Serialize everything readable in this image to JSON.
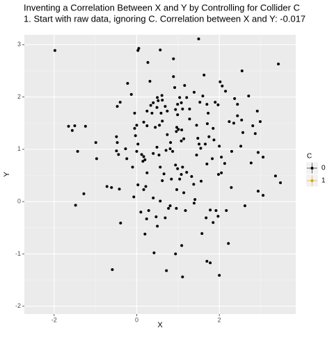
{
  "chart_data": {
    "type": "scatter",
    "title": "Inventing a Correlation Between X and Y by Controlling for Collider C",
    "subtitle": "1. Start with raw data, ignoring C. Correlation between X and Y: -0.017",
    "x_label": "X",
    "y_label": "Y",
    "legend_title": "C",
    "xlim": [
      -2.72,
      3.85
    ],
    "ylim": [
      -2.15,
      3.19
    ],
    "xticks": [
      -2,
      0,
      2
    ],
    "yticks": [
      -2,
      -1,
      0,
      1,
      2,
      3
    ],
    "grid": true,
    "series": [
      {
        "name": "0",
        "color": "#000000",
        "x": [
          -1.98,
          1.5,
          0.03,
          0.05,
          0.57,
          0.27,
          0.89,
          3.43,
          2.55,
          -0.22,
          -0.13,
          0.32,
          0.89,
          1.63,
          2.02,
          2.07,
          1.16,
          0.61,
          0.5,
          0.4,
          0.52,
          0.62,
          0.34,
          0.49,
          0.69,
          0.74,
          0.59,
          0.37,
          0.25,
          -0.4,
          -0.47,
          -0.05,
          0.92,
          1.04,
          0.99,
          1.08,
          0.94,
          1.11,
          0.99,
          1.21,
          1.39,
          1.28,
          1.53,
          1.6,
          1.7,
          1.73,
          1.9,
          1.97,
          2.15,
          2.37,
          2.44,
          2.71,
          2.92,
          2.81,
          2.24,
          2.35,
          2.44,
          2.54,
          1.71,
          1.85,
          1.45,
          1.28,
          1.48,
          1.75,
          1.87,
          0.55,
          0.62,
          0.45,
          0.25,
          0.17,
          0.0,
          -0.05,
          0.97,
          1.01,
          0.96,
          1.09,
          1.14,
          0.82,
          0.74,
          0.71,
          0.81,
          0.87,
          1.08,
          -1.65,
          -1.5,
          -1.24,
          -1.56,
          -0.99,
          -0.49,
          -0.47,
          -0.49,
          -0.44,
          -0.03,
          0.03,
          0.0,
          0.12,
          0.17,
          0.15,
          -1.43,
          -0.97,
          -0.27,
          -0.24,
          0.2,
          0.4,
          0.54,
          0.49,
          1.51,
          1.66,
          1.55,
          1.45,
          1.7,
          1.83,
          2.0,
          2.05,
          2.13,
          2.3,
          2.52,
          2.57,
          2.87,
          2.99,
          2.94,
          3.06,
          2.77,
          0.94,
          0.99,
          1.08,
          1.04,
          1.33,
          1.38,
          1.56,
          1.21,
          1.11,
          0.57,
          0.66,
          0.62,
          0.84,
          0.25,
          0.22,
          0.03,
          -0.1,
          -0.61,
          -0.42,
          -0.72,
          0.17,
          -1.28,
          -1.48,
          -0.39,
          2.62,
          2.94,
          3.06,
          3.36,
          3.48,
          2.29,
          1.98,
          2.05,
          -0.07,
          0.1,
          0.29,
          0.24,
          0.47,
          0.5,
          0.69,
          0.77,
          0.96,
          1.18,
          1.39,
          1.14,
          1.41,
          0.97,
          0.57,
          0.81,
          1.78,
          1.92,
          1.97,
          2.17,
          1.85,
          1.58,
          1.68,
          0.4,
          1.09,
          0.94,
          0.42,
          0.72,
          1.11,
          2.22,
          1.7,
          1.78,
          -0.59,
          2.0,
          0.2
        ],
        "values": [
          2.89,
          3.11,
          2.89,
          2.93,
          2.9,
          2.66,
          2.73,
          2.63,
          2.5,
          2.26,
          2.05,
          2.3,
          2.39,
          2.42,
          2.29,
          2.21,
          2.22,
          2.03,
          1.99,
          1.89,
          1.93,
          1.94,
          1.84,
          1.8,
          1.82,
          1.73,
          1.69,
          1.69,
          1.73,
          1.9,
          1.82,
          1.69,
          2.18,
          1.99,
          1.86,
          1.89,
          1.76,
          1.77,
          1.66,
          1.99,
          2.09,
          1.77,
          1.9,
          2.02,
          1.86,
          1.69,
          1.9,
          1.85,
          2.11,
          1.97,
          1.86,
          2.02,
          1.73,
          1.45,
          1.53,
          1.5,
          1.64,
          1.56,
          1.49,
          1.4,
          1.46,
          1.58,
          1.21,
          1.24,
          1.18,
          1.46,
          1.54,
          1.42,
          1.45,
          1.52,
          1.46,
          1.4,
          1.42,
          1.38,
          1.34,
          1.37,
          1.2,
          1.13,
          1.28,
          0.98,
          1.01,
          0.96,
          1.16,
          1.44,
          1.45,
          1.44,
          1.36,
          1.13,
          1.24,
          1.13,
          0.97,
          0.9,
          1.26,
          1.1,
          0.96,
          0.9,
          0.86,
          0.77,
          0.96,
          0.82,
          1.01,
          0.82,
          0.8,
          0.92,
          0.89,
          1.04,
          1.1,
          1.1,
          1.02,
          0.89,
          0.72,
          0.82,
          1.06,
          0.85,
          0.73,
          0.96,
          1.06,
          1.32,
          1.3,
          1.53,
          0.94,
          0.85,
          0.74,
          0.7,
          0.63,
          0.52,
          0.43,
          0.48,
          0.33,
          0.39,
          0.56,
          0.66,
          0.66,
          0.53,
          0.4,
          0.43,
          0.55,
          0.29,
          0.32,
          0.66,
          0.27,
          0.24,
          0.29,
          0.23,
          0.15,
          -0.07,
          -0.41,
          -0.08,
          0.2,
          0.12,
          0.49,
          0.36,
          0.27,
          0.52,
          0.55,
          0.09,
          -0.2,
          -0.17,
          -0.33,
          -0.29,
          -0.47,
          -0.31,
          -0.13,
          -0.13,
          -0.17,
          -0.03,
          0.17,
          0.04,
          0.23,
          0.01,
          -0.08,
          -0.16,
          -0.17,
          -0.28,
          -0.17,
          -0.4,
          -0.61,
          -0.31,
          0.07,
          -0.84,
          -1.0,
          -0.98,
          -1.32,
          -1.44,
          -0.8,
          -1.14,
          -1.17,
          -1.3,
          -1.41,
          -0.62
        ]
      },
      {
        "name": "1",
        "color": "#E69F00",
        "x": [],
        "values": []
      }
    ]
  }
}
